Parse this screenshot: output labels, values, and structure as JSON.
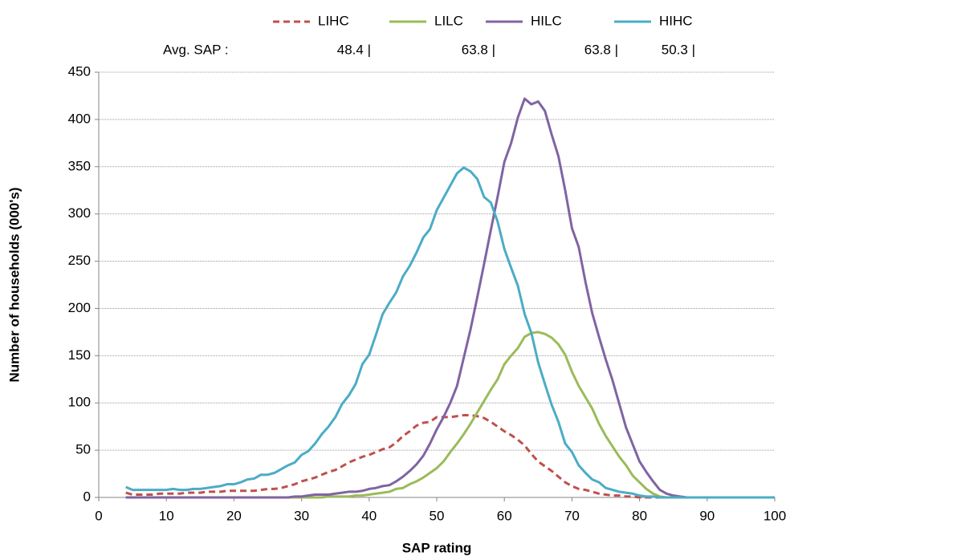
{
  "chart_data": {
    "type": "line",
    "x_label": "SAP rating",
    "y_label": "Number of households (000's)",
    "annotation": {
      "label": "Avg. SAP :",
      "values": [
        "48.4 |",
        "63.8 |",
        "63.8 |",
        "50.3 |"
      ]
    },
    "x": [
      4,
      5,
      6,
      7,
      8,
      9,
      10,
      11,
      12,
      13,
      14,
      15,
      16,
      17,
      18,
      19,
      20,
      21,
      22,
      23,
      24,
      25,
      26,
      27,
      28,
      29,
      30,
      31,
      32,
      33,
      34,
      35,
      36,
      37,
      38,
      39,
      40,
      41,
      42,
      43,
      44,
      45,
      46,
      47,
      48,
      49,
      50,
      51,
      52,
      53,
      54,
      55,
      56,
      57,
      58,
      59,
      60,
      61,
      62,
      63,
      64,
      65,
      66,
      67,
      68,
      69,
      70,
      71,
      72,
      73,
      74,
      75,
      76,
      77,
      78,
      79,
      80,
      81,
      82,
      83,
      84,
      85,
      86,
      87,
      88,
      89,
      90,
      91,
      92,
      93,
      94,
      95,
      96,
      97,
      98,
      99,
      100
    ],
    "series": [
      {
        "name": "LIHC",
        "color": "#c0504d",
        "dashed": true,
        "values": [
          5,
          3,
          3,
          3,
          3,
          4,
          4,
          4,
          4,
          5,
          5,
          5,
          6,
          6,
          6,
          7,
          7,
          7,
          7,
          7,
          8,
          9,
          9,
          10,
          12,
          14,
          17,
          19,
          21,
          24,
          27,
          29,
          33,
          37,
          40,
          43,
          45,
          48,
          51,
          53,
          58,
          65,
          70,
          76,
          79,
          80,
          85,
          85,
          85,
          86,
          87,
          87,
          86,
          84,
          80,
          75,
          70,
          66,
          61,
          55,
          46,
          38,
          33,
          28,
          22,
          16,
          12,
          9,
          8,
          6,
          4,
          3,
          2,
          2,
          1,
          1,
          0,
          0,
          0,
          0,
          0,
          0,
          0,
          0,
          0,
          0,
          0,
          0,
          0,
          0,
          0,
          0,
          0,
          0,
          0,
          0,
          0
        ]
      },
      {
        "name": "LILC",
        "color": "#9bbb59",
        "dashed": false,
        "values": [
          0,
          0,
          0,
          0,
          0,
          0,
          0,
          0,
          0,
          0,
          0,
          0,
          0,
          0,
          0,
          0,
          0,
          0,
          0,
          0,
          0,
          0,
          0,
          0,
          0,
          0,
          0,
          0,
          0,
          0,
          1,
          1,
          1,
          1,
          2,
          2,
          3,
          4,
          5,
          6,
          9,
          10,
          14,
          17,
          21,
          26,
          31,
          38,
          48,
          57,
          67,
          78,
          90,
          102,
          114,
          125,
          141,
          150,
          158,
          170,
          174,
          175,
          173,
          169,
          162,
          151,
          133,
          118,
          106,
          94,
          78,
          65,
          54,
          43,
          34,
          23,
          16,
          9,
          4,
          1,
          0,
          0,
          0,
          0,
          0,
          0,
          0,
          0,
          0,
          0,
          0,
          0,
          0,
          0,
          0,
          0,
          0
        ]
      },
      {
        "name": "HILC",
        "color": "#8064a2",
        "dashed": false,
        "values": [
          0,
          0,
          0,
          0,
          0,
          0,
          0,
          0,
          0,
          0,
          0,
          0,
          0,
          0,
          0,
          0,
          0,
          0,
          0,
          0,
          0,
          0,
          0,
          0,
          0,
          1,
          1,
          2,
          3,
          3,
          3,
          4,
          5,
          6,
          6,
          7,
          9,
          10,
          12,
          13,
          17,
          22,
          28,
          35,
          44,
          57,
          72,
          85,
          100,
          118,
          148,
          178,
          212,
          247,
          283,
          318,
          355,
          375,
          402,
          422,
          416,
          419,
          409,
          384,
          361,
          325,
          285,
          265,
          228,
          195,
          170,
          146,
          124,
          99,
          74,
          56,
          38,
          27,
          17,
          8,
          4,
          2,
          1,
          0,
          0,
          0,
          0,
          0,
          0,
          0,
          0,
          0,
          0,
          0,
          0,
          0,
          0
        ]
      },
      {
        "name": "HIHC",
        "color": "#4bacc6",
        "dashed": false,
        "values": [
          11,
          8,
          8,
          8,
          8,
          8,
          8,
          9,
          8,
          8,
          9,
          9,
          10,
          11,
          12,
          14,
          14,
          16,
          19,
          20,
          24,
          24,
          26,
          30,
          34,
          37,
          45,
          49,
          57,
          67,
          75,
          85,
          99,
          108,
          120,
          141,
          151,
          172,
          194,
          206,
          217,
          234,
          245,
          259,
          275,
          284,
          304,
          317,
          330,
          343,
          349,
          345,
          337,
          318,
          312,
          292,
          263,
          243,
          224,
          194,
          174,
          143,
          120,
          98,
          80,
          57,
          48,
          34,
          26,
          19,
          16,
          10,
          8,
          6,
          5,
          4,
          2,
          1,
          1,
          0,
          0,
          0,
          0,
          0,
          0,
          0,
          0,
          0,
          0,
          0,
          0,
          0,
          0,
          0,
          0,
          0,
          0
        ]
      }
    ],
    "xlim": [
      0,
      100
    ],
    "xticks": [
      0,
      10,
      20,
      30,
      40,
      50,
      60,
      70,
      80,
      90,
      100
    ],
    "ylim": [
      0,
      450
    ],
    "yticks": [
      0,
      50,
      100,
      150,
      200,
      250,
      300,
      350,
      400,
      450
    ],
    "grid": true,
    "legend": "top"
  }
}
